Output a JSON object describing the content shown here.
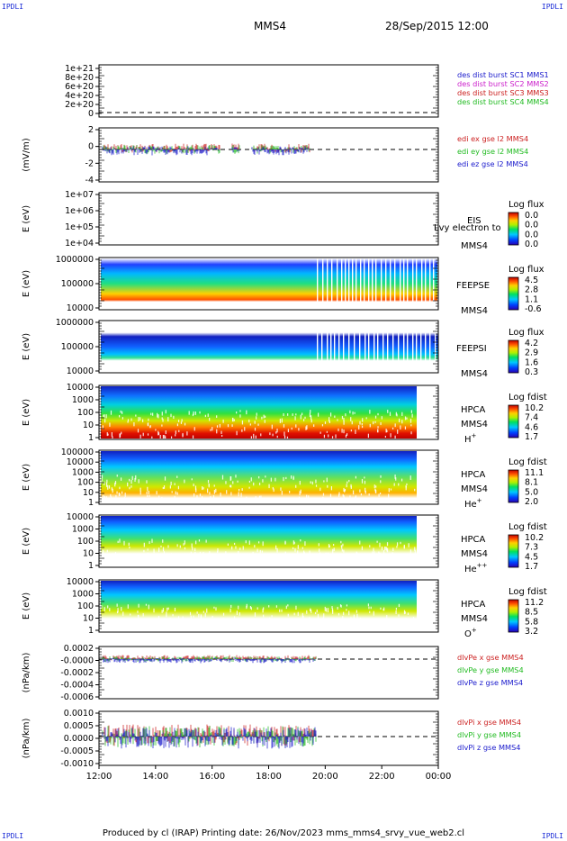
{
  "corners": {
    "tl": "IPDLI",
    "tr": "IPDLI",
    "bl": "IPDLI",
    "br": "IPDLI"
  },
  "header": {
    "title": "MMS4",
    "datetime": "28/Sep/2015 12:00"
  },
  "footer": "Produced by cl (IRAP)   Printing date: 26/Nov/2023   mms_mms4_srvy_vue_web2.cl",
  "chart_data": {
    "type": "multi-panel spectrogram / line",
    "x_ticks": [
      "12:00",
      "14:00",
      "16:00",
      "18:00",
      "20:00",
      "22:00",
      "00:00"
    ],
    "panels": [
      {
        "id": "des",
        "kind": "line",
        "ylabel": "",
        "yticks": [
          "1e+21",
          "8e+20",
          "6e+20",
          "4e+20",
          "2e+20",
          "0"
        ],
        "legend": [
          {
            "text": "des dist burst SC1 MMS1",
            "color": "#1a1acc"
          },
          {
            "text": "des dist burst SC2 MMS2",
            "color": "#cc22cc"
          },
          {
            "text": "des dist burst SC3 MMS3",
            "color": "#cc2222"
          },
          {
            "text": "des dist burst SC4 MMS4",
            "color": "#22bb22"
          }
        ]
      },
      {
        "id": "edi",
        "kind": "line",
        "ylabel": "(mV/m)",
        "yticks": [
          "2",
          "0",
          "-2",
          "-4"
        ],
        "legend": [
          {
            "text": "edi ex gse l2 MMS4",
            "color": "#cc2222"
          },
          {
            "text": "edi ey gse l2 MMS4",
            "color": "#22bb22"
          },
          {
            "text": "edi ez gse l2 MMS4",
            "color": "#1a1acc"
          }
        ]
      },
      {
        "id": "eis",
        "kind": "spectrogram",
        "ylabel": "E (eV)",
        "yticks": [
          "1e+07",
          "1e+06",
          "1e+05",
          "1e+04"
        ],
        "labels": [
          "EIS",
          "MMS4"
        ],
        "overlay": "Lvy electron to",
        "cbar_title": "Log flux",
        "cbar_ticks": [
          "0.0",
          "0.0",
          "0.0",
          "0.0"
        ]
      },
      {
        "id": "feepse",
        "kind": "spectrogram",
        "ylabel": "E (eV)",
        "yticks": [
          "1000000",
          "100000",
          "10000"
        ],
        "labels": [
          "FEEPSE",
          "MMS4"
        ],
        "cbar_title": "Log flux",
        "cbar_ticks": [
          "4.5",
          "2.8",
          "1.1",
          "-0.6"
        ]
      },
      {
        "id": "feepsi",
        "kind": "spectrogram",
        "ylabel": "E (eV)",
        "yticks": [
          "1000000",
          "100000",
          "10000"
        ],
        "labels": [
          "FEEPSI",
          "MMS4"
        ],
        "cbar_title": "Log flux",
        "cbar_ticks": [
          "4.2",
          "2.9",
          "1.6",
          "0.3"
        ]
      },
      {
        "id": "hpca_h",
        "kind": "spectrogram",
        "ylabel": "E (eV)",
        "yticks": [
          "10000",
          "1000",
          "100",
          "10",
          "1"
        ],
        "labels": [
          "HPCA",
          "MMS4"
        ],
        "species": "H",
        "charge": "+",
        "cbar_title": "Log fdist",
        "cbar_ticks": [
          "10.2",
          "7.4",
          "4.6",
          "1.7"
        ]
      },
      {
        "id": "hpca_he",
        "kind": "spectrogram",
        "ylabel": "E (eV)",
        "yticks": [
          "100000",
          "10000",
          "1000",
          "100",
          "10",
          "1"
        ],
        "labels": [
          "HPCA",
          "MMS4"
        ],
        "species": "He",
        "charge": "+",
        "cbar_title": "Log fdist",
        "cbar_ticks": [
          "11.1",
          "8.1",
          "5.0",
          "2.0"
        ]
      },
      {
        "id": "hpca_hepp",
        "kind": "spectrogram",
        "ylabel": "E (eV)",
        "yticks": [
          "10000",
          "1000",
          "100",
          "10",
          "1"
        ],
        "labels": [
          "HPCA",
          "MMS4"
        ],
        "species": "He",
        "charge": "++",
        "cbar_title": "Log fdist",
        "cbar_ticks": [
          "10.2",
          "7.3",
          "4.5",
          "1.7"
        ]
      },
      {
        "id": "hpca_o",
        "kind": "spectrogram",
        "ylabel": "E (eV)",
        "yticks": [
          "10000",
          "1000",
          "100",
          "10",
          "1"
        ],
        "labels": [
          "HPCA",
          "MMS4"
        ],
        "species": "O",
        "charge": "+",
        "cbar_title": "Log fdist",
        "cbar_ticks": [
          "11.2",
          "8.5",
          "5.8",
          "3.2"
        ]
      },
      {
        "id": "divpe",
        "kind": "line",
        "ylabel": "(nPa/km)",
        "yticks": [
          "0.0002",
          "-0.0000",
          "-0.0002",
          "-0.0004",
          "-0.0006"
        ],
        "legend": [
          {
            "text": "dlvPe x gse MMS4",
            "color": "#cc2222"
          },
          {
            "text": "dlvPe y gse MMS4",
            "color": "#22bb22"
          },
          {
            "text": "dlvPe z gse MMS4",
            "color": "#1a1acc"
          }
        ]
      },
      {
        "id": "divpi",
        "kind": "line",
        "ylabel": "(nPa/km)",
        "yticks": [
          "0.0010",
          "0.0005",
          "0.0000",
          "-0.0005",
          "-0.0010"
        ],
        "legend": [
          {
            "text": "dlvPi x gse MMS4",
            "color": "#cc2222"
          },
          {
            "text": "dlvPi y gse MMS4",
            "color": "#22bb22"
          },
          {
            "text": "dlvPi z gse MMS4",
            "color": "#1a1acc"
          }
        ]
      }
    ]
  }
}
